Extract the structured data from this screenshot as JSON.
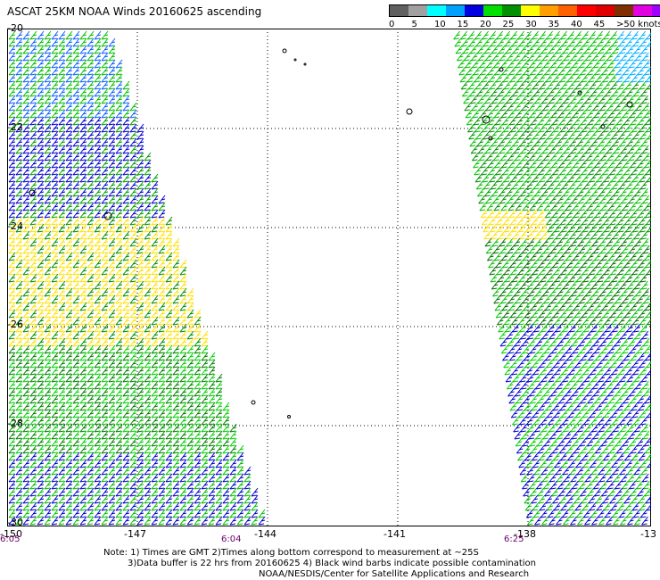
{
  "title": "ASCAT 25KM NOAA Winds 20160625 ascending",
  "legend": {
    "colors": [
      "#606060",
      "#a0a0a0",
      "#00ffff",
      "#00a0ff",
      "#0000e0",
      "#00e000",
      "#009000",
      "#ffff00",
      "#ffa000",
      "#ff6000",
      "#ff0000",
      "#e00000",
      "#803000",
      "#e000e0",
      "#a000ff",
      "#6000a0"
    ],
    "labels": [
      "0",
      "5",
      "10",
      "15",
      "20",
      "25",
      "30",
      "35",
      "40",
      "45",
      ">50 knots"
    ]
  },
  "map": {
    "lat_labels": [
      "-20",
      "-22",
      "-24",
      "-26",
      "-28",
      "-30"
    ],
    "lon_labels": [
      "-150",
      "-147",
      "-144",
      "-141",
      "-138",
      "-13"
    ],
    "time_labels": [
      "6:05",
      "6:04",
      "6:25"
    ]
  },
  "notes": {
    "line1": "Note: 1) Times are GMT 2)Times along bottom correspond to measurement at ~25S",
    "line2": "3)Data buffer is 22 hrs from 20160625 4) Black wind barbs indicate possible contamination",
    "line3": "NOAA/NESDIS/Center for Satellite Applications and Research"
  }
}
